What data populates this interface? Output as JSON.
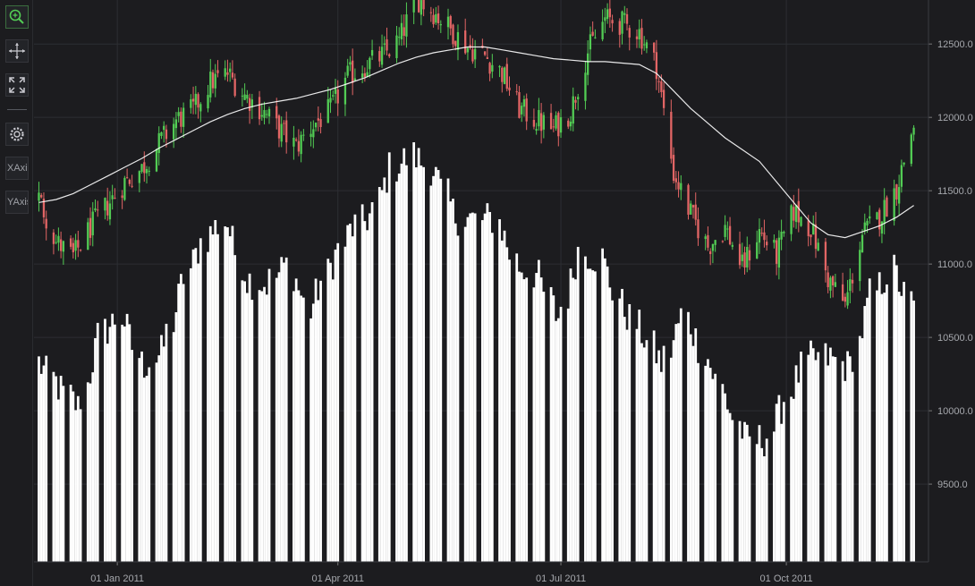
{
  "toolbar": {
    "buttons": [
      {
        "name": "zoom-icon",
        "active": true
      },
      {
        "name": "pan-icon"
      },
      {
        "name": "zoom-extents-icon"
      },
      {
        "name": "settings-icon"
      },
      {
        "label": "XAxis"
      },
      {
        "label": "YAxis"
      }
    ]
  },
  "chart_data": {
    "type": "candlestick+volume",
    "title": "",
    "xlabel": "",
    "ylabel": "",
    "x_tick_labels": [
      "01 Jan 2011",
      "01 Apr 2011",
      "01 Jul 2011",
      "01 Oct 2011"
    ],
    "x_tick_dates": [
      "2011-01-01",
      "2011-04-01",
      "2011-07-01",
      "2011-10-01"
    ],
    "y_tick_labels": [
      "9500.0",
      "10000.0",
      "10500.0",
      "11000.0",
      "11500.0",
      "12000.0",
      "12500.0"
    ],
    "ylim": [
      8970,
      12800
    ],
    "grid": true,
    "colors": {
      "up": "#52cc54",
      "down": "#e26565",
      "moving_average": "#ffffff",
      "volume": "#ffffff",
      "background": "#1c1c1f",
      "grid": "#2d2e33",
      "text": "#a6a8ad"
    },
    "price_series": {
      "name": "",
      "date": [
        "2010-11-30",
        "2010-12-07",
        "2010-12-14",
        "2010-12-21",
        "2010-12-28",
        "2011-01-04",
        "2011-01-11",
        "2011-01-18",
        "2011-01-25",
        "2011-02-01",
        "2011-02-08",
        "2011-02-15",
        "2011-02-22",
        "2011-03-01",
        "2011-03-08",
        "2011-03-15",
        "2011-03-22",
        "2011-03-29",
        "2011-04-05",
        "2011-04-12",
        "2011-04-19",
        "2011-04-26",
        "2011-05-03",
        "2011-05-10",
        "2011-05-17",
        "2011-05-24",
        "2011-05-31",
        "2011-06-07",
        "2011-06-14",
        "2011-06-21",
        "2011-06-28",
        "2011-07-05",
        "2011-07-12",
        "2011-07-19",
        "2011-07-26",
        "2011-08-02",
        "2011-08-09",
        "2011-08-16",
        "2011-08-23",
        "2011-08-30",
        "2011-09-06",
        "2011-09-13",
        "2011-09-20",
        "2011-09-27",
        "2011-10-04",
        "2011-10-11",
        "2011-10-18",
        "2011-10-25",
        "2011-11-01",
        "2011-11-08",
        "2011-11-15",
        "2011-11-22"
      ],
      "close": [
        11450,
        11150,
        11050,
        11250,
        11400,
        11560,
        11650,
        11820,
        11980,
        12050,
        12240,
        12300,
        12150,
        12050,
        11920,
        11800,
        11950,
        12050,
        12280,
        12350,
        12420,
        12520,
        12820,
        12720,
        12600,
        12480,
        12420,
        12300,
        12060,
        11980,
        11920,
        12040,
        12450,
        12670,
        12640,
        12580,
        12350,
        11620,
        11340,
        11120,
        11250,
        10980,
        11220,
        11060,
        11360,
        11250,
        10900,
        10720,
        11200,
        11320,
        11520,
        11950
      ],
      "moving_average": [
        11420,
        11440,
        11480,
        11540,
        11600,
        11660,
        11720,
        11790,
        11850,
        11910,
        11970,
        12020,
        12060,
        12090,
        12110,
        12130,
        12160,
        12190,
        12230,
        12270,
        12320,
        12370,
        12410,
        12440,
        12460,
        12480,
        12480,
        12460,
        12440,
        12420,
        12400,
        12390,
        12380,
        12380,
        12370,
        12360,
        12300,
        12180,
        12060,
        11960,
        11860,
        11780,
        11700,
        11560,
        11420,
        11280,
        11200,
        11180,
        11220,
        11260,
        11320,
        11400
      ]
    },
    "volume_series": {
      "name": "",
      "date_start": "2010-11-30",
      "date_end": "2011-11-22",
      "levels": [
        10330,
        10160,
        10020,
        10520,
        10650,
        10300,
        10400,
        10890,
        11180,
        11300,
        10900,
        10860,
        11000,
        10680,
        10980,
        11230,
        11330,
        11660,
        11740,
        11640,
        11330,
        11300,
        11310,
        10990,
        10920,
        10620,
        11090,
        11040,
        10720,
        10530,
        10310,
        10660,
        10390,
        10080,
        9790,
        9810,
        10110,
        10350,
        10360,
        10290,
        10780,
        10960,
        10700
      ]
    }
  }
}
